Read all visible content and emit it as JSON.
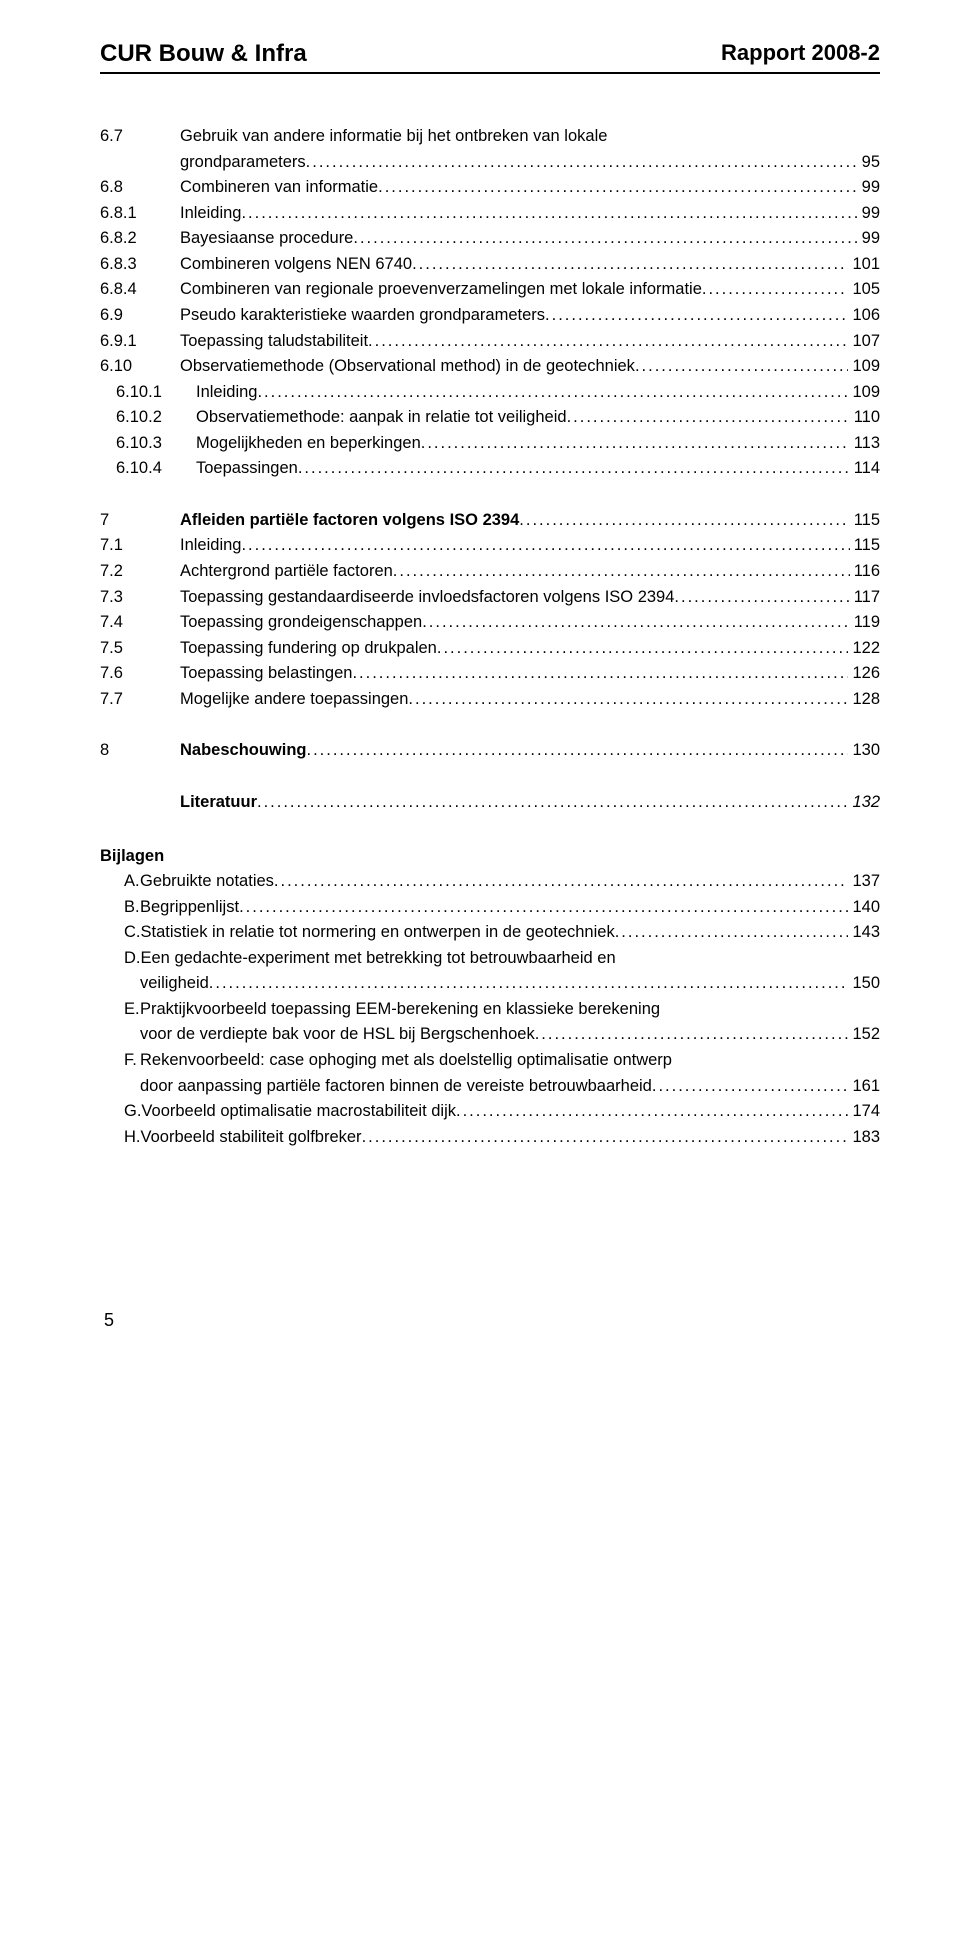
{
  "header": {
    "left": "CUR Bouw & Infra",
    "right": "Rapport 2008-2"
  },
  "toc": [
    {
      "type": "multi",
      "num": "6.7",
      "line1": "Gebruik van andere informatie bij het ontbreken van lokale",
      "line2": "grondparameters",
      "page": "95"
    },
    {
      "type": "row",
      "num": "6.8",
      "title": "Combineren van informatie",
      "page": "99"
    },
    {
      "type": "row",
      "num": "6.8.1",
      "title": "Inleiding",
      "page": "99"
    },
    {
      "type": "row",
      "num": "6.8.2",
      "title": "Bayesiaanse procedure",
      "page": "99"
    },
    {
      "type": "row",
      "num": "6.8.3",
      "title": "Combineren volgens NEN 6740",
      "page": "101"
    },
    {
      "type": "row",
      "num": "6.8.4",
      "title": "Combineren van regionale proevenverzamelingen met lokale informatie",
      "page": "105"
    },
    {
      "type": "row",
      "num": "6.9",
      "title": "Pseudo karakteristieke waarden grondparameters",
      "page": "106"
    },
    {
      "type": "row",
      "num": "6.9.1",
      "title": "Toepassing taludstabiliteit",
      "page": "107"
    },
    {
      "type": "row",
      "num": "6.10",
      "title": "Observatiemethode (Observational method) in de geotechniek",
      "page": "109"
    },
    {
      "type": "row",
      "num": "6.10.1",
      "title": "Inleiding",
      "page": "109",
      "indent": true
    },
    {
      "type": "row",
      "num": "6.10.2",
      "title": "Observatiemethode: aanpak in relatie tot veiligheid",
      "page": "110",
      "indent": true
    },
    {
      "type": "row",
      "num": "6.10.3",
      "title": "Mogelijkheden en beperkingen",
      "page": "113",
      "indent": true
    },
    {
      "type": "row",
      "num": "6.10.4",
      "title": "Toepassingen",
      "page": "114",
      "indent": true
    },
    {
      "type": "gap"
    },
    {
      "type": "row",
      "num": "7",
      "title": "Afleiden partiële factoren volgens ISO 2394",
      "page": "115",
      "bold": true
    },
    {
      "type": "row",
      "num": "7.1",
      "title": "Inleiding",
      "page": "115"
    },
    {
      "type": "row",
      "num": "7.2",
      "title": "Achtergrond partiële factoren",
      "page": "116"
    },
    {
      "type": "row",
      "num": "7.3",
      "title": "Toepassing gestandaardiseerde invloedsfactoren volgens ISO 2394",
      "page": "117"
    },
    {
      "type": "row",
      "num": "7.4",
      "title": "Toepassing grondeigenschappen",
      "page": "119"
    },
    {
      "type": "row",
      "num": "7.5",
      "title": "Toepassing fundering op drukpalen",
      "page": "122"
    },
    {
      "type": "row",
      "num": "7.6",
      "title": "Toepassing belastingen",
      "page": "126"
    },
    {
      "type": "row",
      "num": "7.7",
      "title": "Mogelijke andere toepassingen",
      "page": "128"
    },
    {
      "type": "gap"
    },
    {
      "type": "row",
      "num": "8",
      "title": "Nabeschouwing",
      "page": "130",
      "bold": true
    },
    {
      "type": "gap"
    },
    {
      "type": "lit",
      "label": "",
      "title": "Literatuur",
      "page": "132",
      "bold": true,
      "italic": true
    }
  ],
  "bijlagen_heading": "Bijlagen",
  "bijlagen": [
    {
      "letter": "A.",
      "lines": [
        "Gebruikte notaties"
      ],
      "page": "137"
    },
    {
      "letter": "B.",
      "lines": [
        "Begrippenlijst"
      ],
      "page": "140"
    },
    {
      "letter": "C.",
      "lines": [
        "Statistiek in relatie tot normering en ontwerpen in de geotechniek"
      ],
      "page": "143"
    },
    {
      "letter": "D.",
      "lines": [
        "Een gedachte-experiment met betrekking tot betrouwbaarheid en",
        "veiligheid"
      ],
      "page": "150"
    },
    {
      "letter": "E.",
      "lines": [
        "Praktijkvoorbeeld toepassing EEM-berekening en klassieke berekening",
        "voor de verdiepte bak voor de HSL bij Bergschenhoek"
      ],
      "page": "152"
    },
    {
      "letter": "F.",
      "lines": [
        "Rekenvoorbeeld: case ophoging met als doelstellig optimalisatie ontwerp",
        "door aanpassing partiële factoren binnen de vereiste betrouwbaarheid"
      ],
      "page": "161"
    },
    {
      "letter": "G.",
      "lines": [
        "Voorbeeld optimalisatie macrostabiliteit dijk"
      ],
      "page": "174"
    },
    {
      "letter": "H.",
      "lines": [
        "Voorbeeld stabiliteit golfbreker"
      ],
      "page": "183"
    }
  ],
  "page_number": "5"
}
